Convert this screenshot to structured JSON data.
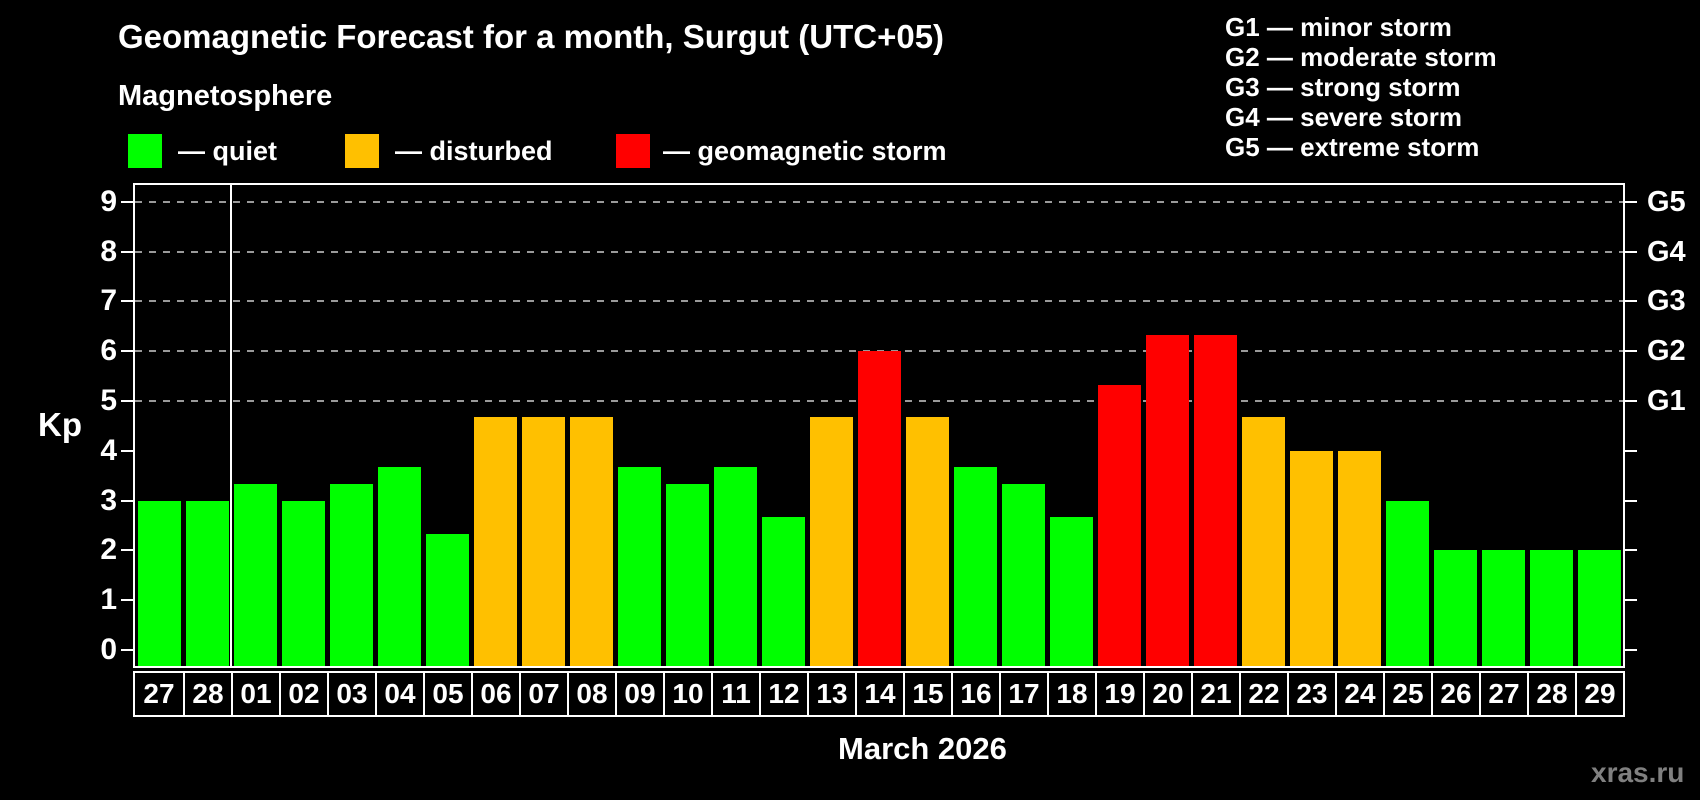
{
  "page": {
    "title": "Geomagnetic Forecast for a month, Surgut (UTC+05)",
    "subtitle": "Magnetosphere"
  },
  "legend": {
    "items": [
      {
        "key": "quiet",
        "label": "— quiet"
      },
      {
        "key": "disturbed",
        "label": "— disturbed"
      },
      {
        "key": "storm",
        "label": "— geomagnetic storm"
      }
    ]
  },
  "storm_legend": [
    "G1 — minor storm",
    "G2 — moderate storm",
    "G3 — strong storm",
    "G4 — severe storm",
    "G5 — extreme storm"
  ],
  "axis": {
    "kp_label": "Kp",
    "left_ticks": [
      0,
      1,
      2,
      3,
      4,
      5,
      6,
      7,
      8,
      9
    ],
    "g_levels": [
      {
        "kp": 5,
        "label": "G1"
      },
      {
        "kp": 6,
        "label": "G2"
      },
      {
        "kp": 7,
        "label": "G3"
      },
      {
        "kp": 8,
        "label": "G4"
      },
      {
        "kp": 9,
        "label": "G5"
      }
    ]
  },
  "footer": {
    "month_label": "March 2026",
    "watermark": "xras.ru"
  },
  "colors": {
    "quiet": "#00ff00",
    "disturbed": "#ffc000",
    "storm": "#ff0000",
    "gridline": "#9a9a9a",
    "frame": "#ffffff",
    "background": "#000000"
  },
  "chart_data": {
    "type": "bar",
    "title": "Geomagnetic Forecast for a month, Surgut (UTC+05)",
    "xlabel": "March 2026",
    "ylabel": "Kp",
    "ylim": [
      -0.3,
      9.4
    ],
    "grid": "dashed horizontal lines at Kp 5..9 (G1..G5), behind bars",
    "legend_position": "top-left",
    "categories": [
      "27",
      "28",
      "01",
      "02",
      "03",
      "04",
      "05",
      "06",
      "07",
      "08",
      "09",
      "10",
      "11",
      "12",
      "13",
      "14",
      "15",
      "16",
      "17",
      "18",
      "19",
      "20",
      "21",
      "22",
      "23",
      "24",
      "25",
      "26",
      "27",
      "28",
      "29"
    ],
    "values": [
      3.0,
      3.0,
      3.33,
      3.0,
      3.33,
      3.67,
      2.33,
      4.67,
      4.67,
      4.67,
      3.67,
      3.33,
      3.67,
      2.67,
      4.67,
      6.0,
      4.67,
      3.67,
      3.33,
      2.67,
      5.33,
      6.33,
      6.33,
      4.67,
      4.0,
      4.0,
      3.0,
      2.0,
      2.0,
      2.0,
      2.0
    ],
    "statuses": [
      "quiet",
      "quiet",
      "quiet",
      "quiet",
      "quiet",
      "quiet",
      "quiet",
      "disturbed",
      "disturbed",
      "disturbed",
      "quiet",
      "quiet",
      "quiet",
      "quiet",
      "disturbed",
      "storm",
      "disturbed",
      "quiet",
      "quiet",
      "quiet",
      "storm",
      "storm",
      "storm",
      "disturbed",
      "disturbed",
      "disturbed",
      "quiet",
      "quiet",
      "quiet",
      "quiet",
      "quiet"
    ],
    "gridline_kp": [
      5,
      6,
      7,
      8,
      9
    ],
    "month_boundary_after_index": 1
  }
}
